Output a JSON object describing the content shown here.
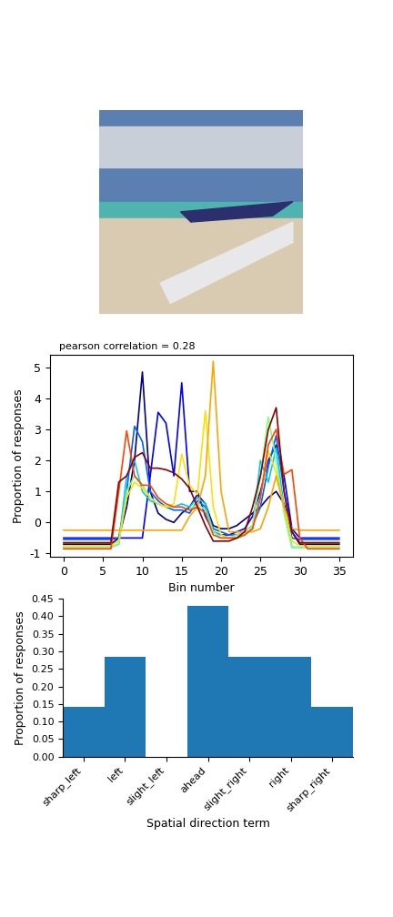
{
  "chart_data": [
    {
      "type": "line",
      "annotation": "pearson correlation = 0.28",
      "x_label": "Bin number",
      "y_label": "Proportion of responses",
      "x": [
        0,
        1,
        2,
        3,
        4,
        5,
        6,
        7,
        8,
        9,
        10,
        11,
        12,
        13,
        14,
        15,
        16,
        17,
        18,
        19,
        20,
        21,
        22,
        23,
        24,
        25,
        26,
        27,
        28,
        29,
        30,
        31,
        32,
        33,
        34,
        35
      ],
      "xlim": [
        -1.75,
        36.75
      ],
      "xticks": [
        0,
        5,
        10,
        15,
        20,
        25,
        30,
        35
      ],
      "ylim": [
        -1.1,
        5.4
      ],
      "yticks": [
        -1,
        0,
        1,
        2,
        3,
        4,
        5
      ],
      "series": [
        {
          "color": "#00008b",
          "values": [
            -0.7,
            -0.7,
            -0.7,
            -0.7,
            -0.7,
            -0.7,
            -0.7,
            -0.5,
            0.5,
            2.0,
            4.85,
            1.0,
            0.3,
            0.1,
            0.0,
            0.3,
            0.5,
            0.9,
            0.6,
            -0.1,
            -0.2,
            -0.2,
            -0.1,
            0.1,
            0.3,
            0.5,
            0.8,
            1.0,
            0.6,
            -0.3,
            -0.7,
            -0.7,
            -0.7,
            -0.7,
            -0.7,
            -0.7
          ]
        },
        {
          "color": "#0000ff",
          "values": [
            -0.5,
            -0.5,
            -0.5,
            -0.5,
            -0.5,
            -0.5,
            -0.5,
            -0.5,
            -0.5,
            -0.5,
            -0.5,
            1.5,
            3.55,
            3.2,
            1.5,
            4.5,
            1.0,
            1.0,
            0.2,
            -0.3,
            -0.4,
            -0.4,
            -0.3,
            -0.2,
            0.2,
            1.0,
            2.0,
            2.5,
            1.5,
            -0.2,
            -0.5,
            -0.5,
            -0.5,
            -0.5,
            -0.5,
            -0.5
          ]
        },
        {
          "color": "#0060ff",
          "values": [
            -0.55,
            -0.55,
            -0.55,
            -0.55,
            -0.55,
            -0.55,
            -0.55,
            -0.5,
            1.0,
            3.1,
            2.6,
            1.0,
            0.7,
            0.5,
            0.4,
            0.4,
            0.3,
            0.7,
            0.5,
            -0.2,
            -0.3,
            -0.4,
            -0.4,
            -0.3,
            -0.1,
            0.5,
            1.8,
            2.8,
            1.0,
            -0.5,
            -0.55,
            -0.55,
            -0.55,
            -0.55,
            -0.55,
            -0.55
          ]
        },
        {
          "color": "#00c8ff",
          "values": [
            -0.8,
            -0.8,
            -0.8,
            -0.8,
            -0.8,
            -0.8,
            -0.8,
            -0.7,
            1.5,
            2.0,
            1.0,
            0.7,
            0.6,
            0.5,
            0.5,
            0.6,
            0.5,
            0.8,
            0.6,
            -0.3,
            -0.4,
            -0.5,
            -0.5,
            -0.4,
            -0.2,
            2.0,
            1.3,
            2.4,
            0.5,
            -0.8,
            -0.8,
            -0.8,
            -0.8,
            -0.8,
            -0.8,
            -0.8
          ]
        },
        {
          "color": "#7fff7f",
          "values": [
            -0.8,
            -0.8,
            -0.8,
            -0.8,
            -0.8,
            -0.8,
            -0.8,
            -0.7,
            1.0,
            1.5,
            1.2,
            0.8,
            0.6,
            0.5,
            0.5,
            0.5,
            0.4,
            0.6,
            0.4,
            -0.3,
            -0.5,
            -0.5,
            -0.4,
            -0.3,
            -0.1,
            1.5,
            3.4,
            2.0,
            0.3,
            -0.8,
            -0.8,
            -0.8,
            -0.8,
            -0.8,
            -0.8,
            -0.8
          ]
        },
        {
          "color": "#ffe000",
          "values": [
            -0.75,
            -0.75,
            -0.75,
            -0.75,
            -0.75,
            -0.75,
            -0.75,
            -0.6,
            0.8,
            1.3,
            1.1,
            0.8,
            0.6,
            0.5,
            0.6,
            2.2,
            1.2,
            0.9,
            3.6,
            0.5,
            -0.4,
            -0.5,
            -0.5,
            -0.4,
            -0.2,
            0.8,
            2.3,
            1.6,
            0.5,
            -0.6,
            -0.75,
            -0.75,
            -0.75,
            -0.75,
            -0.75,
            -0.75
          ]
        },
        {
          "color": "#ffa500",
          "values": [
            -0.25,
            -0.25,
            -0.25,
            -0.25,
            -0.25,
            -0.25,
            -0.25,
            -0.25,
            -0.25,
            -0.25,
            -0.25,
            -0.25,
            -0.25,
            -0.25,
            -0.25,
            -0.25,
            0.2,
            0.5,
            1.5,
            5.2,
            1.0,
            -0.3,
            -0.3,
            -0.3,
            -0.3,
            -0.2,
            0.5,
            1.5,
            0.5,
            -0.2,
            -0.25,
            -0.25,
            -0.25,
            -0.25,
            -0.25,
            -0.25
          ]
        },
        {
          "color": "#ff4500",
          "values": [
            -0.85,
            -0.85,
            -0.85,
            -0.85,
            -0.85,
            -0.85,
            -0.85,
            1.0,
            2.95,
            1.5,
            1.2,
            1.2,
            0.8,
            0.6,
            0.5,
            0.5,
            0.4,
            0.5,
            0.3,
            -0.4,
            -0.5,
            -0.5,
            -0.5,
            -0.4,
            -0.2,
            0.8,
            2.5,
            3.0,
            1.55,
            1.7,
            -0.5,
            -0.85,
            -0.85,
            -0.85,
            -0.85,
            -0.85
          ]
        },
        {
          "color": "#8b0000",
          "values": [
            -0.65,
            -0.65,
            -0.65,
            -0.65,
            -0.65,
            -0.65,
            -0.65,
            1.3,
            1.5,
            2.1,
            2.25,
            1.75,
            1.75,
            1.7,
            1.6,
            1.4,
            1.1,
            0.5,
            -0.1,
            -0.6,
            -0.6,
            -0.6,
            -0.5,
            -0.3,
            0.5,
            1.5,
            3.0,
            3.7,
            1.0,
            -0.3,
            -0.65,
            -0.65,
            -0.65,
            -0.65,
            -0.65,
            -0.65
          ]
        }
      ]
    },
    {
      "type": "bar",
      "x_label": "Spatial direction term",
      "y_label": "Proportion of responses",
      "categories": [
        "sharp_left",
        "left",
        "slight_left",
        "ahead",
        "slight_right",
        "right",
        "sharp_right"
      ],
      "values": [
        0.1429,
        0.2857,
        0,
        0.4286,
        0.2857,
        0.2857,
        0.1429
      ],
      "color": "#1f77b4",
      "ylim": [
        0,
        0.45
      ],
      "yticks": [
        {
          "value": 0,
          "label": "0.00"
        },
        {
          "value": 0.05,
          "label": "0.05"
        },
        {
          "value": 0.1,
          "label": "0.10"
        },
        {
          "value": 0.15,
          "label": "0.15"
        },
        {
          "value": 0.2,
          "label": "0.20"
        },
        {
          "value": 0.25,
          "label": "0.25"
        },
        {
          "value": 0.3,
          "label": "0.30"
        },
        {
          "value": 0.35,
          "label": "0.35"
        },
        {
          "value": 0.4,
          "label": "0.40"
        },
        {
          "value": 0.45,
          "label": "0.45"
        }
      ]
    }
  ]
}
